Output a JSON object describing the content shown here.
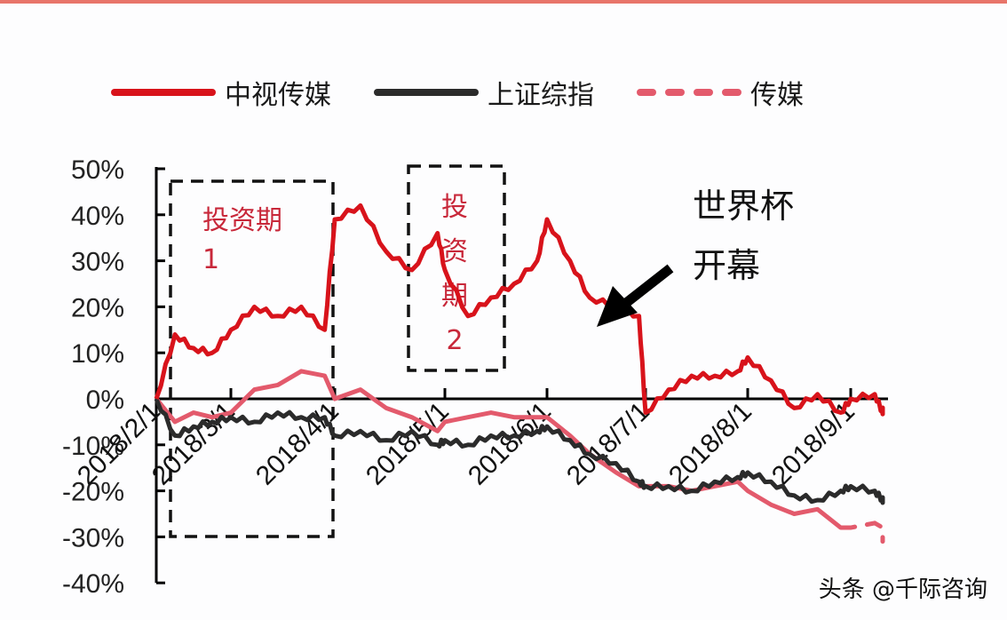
{
  "legend": [
    {
      "label": "中视传媒",
      "color": "#d8131b",
      "style": "solid"
    },
    {
      "label": "上证综指",
      "color": "#2b2b2b",
      "style": "solid"
    },
    {
      "label": "传媒",
      "color": "#e35a6c",
      "style": "dashed"
    }
  ],
  "annotations": {
    "box1_label_line1": "投资期",
    "box1_label_line2": "1",
    "box2_chars": [
      "投",
      "资",
      "期",
      "2"
    ],
    "event_line1": "世界杯",
    "event_line2": "开幕"
  },
  "watermark": "头条 @千际咨询",
  "chart_data": {
    "type": "line",
    "title": "",
    "xlabel": "",
    "ylabel": "",
    "ylim": [
      -40,
      50
    ],
    "yticks": [
      "50%",
      "40%",
      "30%",
      "20%",
      "10%",
      "0%",
      "-10%",
      "-20%",
      "-30%",
      "-40%"
    ],
    "xticks": [
      "2018/2/1",
      "2018/3/1",
      "2018/4/1",
      "2018/5/1",
      "2018/6/1",
      "2018/7/1",
      "2018/8/1",
      "2018/9/1"
    ],
    "legend_position": "top",
    "grid": false,
    "x": [
      "2018/2/1",
      "2018/2/8",
      "2018/2/15",
      "2018/2/22",
      "2018/3/1",
      "2018/3/8",
      "2018/3/15",
      "2018/3/22",
      "2018/3/29",
      "2018/4/1",
      "2018/4/8",
      "2018/4/15",
      "2018/4/22",
      "2018/4/29",
      "2018/5/1",
      "2018/5/8",
      "2018/5/15",
      "2018/5/22",
      "2018/5/29",
      "2018/6/1",
      "2018/6/8",
      "2018/6/14",
      "2018/6/22",
      "2018/6/29",
      "2018/7/1",
      "2018/7/8",
      "2018/7/15",
      "2018/7/22",
      "2018/7/29",
      "2018/8/1",
      "2018/8/8",
      "2018/8/15",
      "2018/8/22",
      "2018/8/29",
      "2018/9/1",
      "2018/9/8",
      "2018/9/15",
      "2018/9/22"
    ],
    "series": [
      {
        "name": "中视传媒",
        "values": [
          0,
          14,
          11,
          10,
          15,
          20,
          18,
          20,
          15,
          39,
          42,
          32,
          28,
          36,
          28,
          18,
          22,
          25,
          30,
          39,
          30,
          22,
          20,
          18,
          -3,
          2,
          5,
          5,
          6,
          9,
          4,
          -2,
          1,
          -3,
          0,
          1,
          -3,
          -2
        ]
      },
      {
        "name": "上证综指",
        "values": [
          0,
          -8,
          -6,
          -5,
          -4,
          -5,
          -3,
          -4,
          -4,
          -8,
          -7,
          -9,
          -7,
          -10,
          -9,
          -10,
          -8,
          -8,
          -7,
          -6,
          -9,
          -12,
          -14,
          -18,
          -19,
          -19,
          -20,
          -18,
          -17,
          -16,
          -18,
          -21,
          -22,
          -20,
          -19,
          -20,
          -22,
          -22
        ]
      },
      {
        "name": "传媒",
        "values": [
          0,
          -5,
          -3,
          -4,
          -3,
          2,
          3,
          6,
          5,
          0,
          2,
          -2,
          -4,
          -7,
          -5,
          -4,
          -3,
          -4,
          -4,
          -4,
          -8,
          -12,
          -16,
          -19,
          -19,
          -19,
          -20,
          -19,
          -18,
          -20,
          -23,
          -25,
          -24,
          -28,
          -28,
          -27,
          -28,
          -31
        ]
      }
    ],
    "shaded_regions": [
      {
        "label": "投资期1",
        "x_start": "2018/2/5",
        "x_end": "2018/4/1"
      },
      {
        "label": "投资期2",
        "x_start": "2018/5/1",
        "x_end": "2018/5/30"
      }
    ],
    "event_annotation": {
      "label": "世界杯开幕",
      "x": "2018/6/14"
    }
  }
}
